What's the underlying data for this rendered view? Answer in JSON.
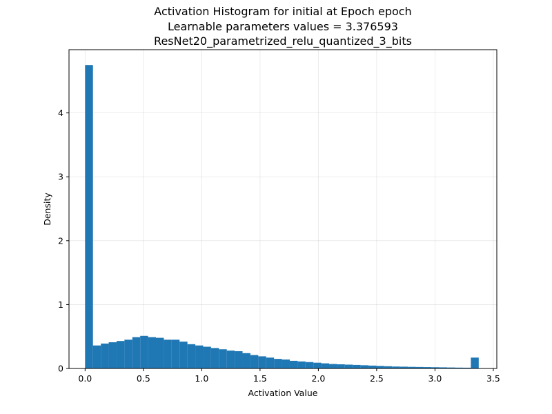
{
  "chart_data": {
    "type": "bar",
    "title_lines": [
      "Activation Histogram for initial at Epoch epoch",
      "Learnable parameters values = 3.376593",
      "ResNet20_parametrized_relu_quantized_3_bits"
    ],
    "xlabel": "Activation Value",
    "ylabel": "Density",
    "xlim": [
      -0.138,
      3.53
    ],
    "ylim": [
      0,
      4.99
    ],
    "xticks": [
      0.0,
      0.5,
      1.0,
      1.5,
      2.0,
      2.5,
      3.0,
      3.5
    ],
    "xtick_labels": [
      "0.0",
      "0.5",
      "1.0",
      "1.5",
      "2.0",
      "2.5",
      "3.0",
      "3.5"
    ],
    "yticks": [
      0,
      1,
      2,
      3,
      4
    ],
    "ytick_labels": [
      "0",
      "1",
      "2",
      "3",
      "4"
    ],
    "grid": true,
    "bar_color": "#1f77b4",
    "bin_width": 0.0675,
    "bin_starts": [
      0.0,
      0.0675,
      0.135,
      0.2025,
      0.27,
      0.3375,
      0.405,
      0.4725,
      0.54,
      0.6075,
      0.675,
      0.7425,
      0.81,
      0.8775,
      0.945,
      1.0125,
      1.08,
      1.1475,
      1.215,
      1.2825,
      1.35,
      1.4175,
      1.485,
      1.5525,
      1.62,
      1.6875,
      1.755,
      1.8225,
      1.89,
      1.9575,
      2.025,
      2.0925,
      2.16,
      2.2275,
      2.295,
      2.3625,
      2.43,
      2.4975,
      2.565,
      2.6325,
      2.7,
      2.7675,
      2.835,
      2.9025,
      2.97,
      3.0375,
      3.105,
      3.1725,
      3.24,
      3.3075
    ],
    "values": [
      4.75,
      0.36,
      0.39,
      0.41,
      0.43,
      0.45,
      0.49,
      0.51,
      0.49,
      0.48,
      0.45,
      0.45,
      0.42,
      0.38,
      0.36,
      0.34,
      0.32,
      0.3,
      0.28,
      0.27,
      0.24,
      0.21,
      0.19,
      0.17,
      0.15,
      0.14,
      0.12,
      0.11,
      0.1,
      0.09,
      0.08,
      0.07,
      0.065,
      0.06,
      0.055,
      0.05,
      0.045,
      0.04,
      0.035,
      0.03,
      0.028,
      0.025,
      0.023,
      0.021,
      0.019,
      0.017,
      0.015,
      0.013,
      0.012,
      0.17
    ]
  }
}
